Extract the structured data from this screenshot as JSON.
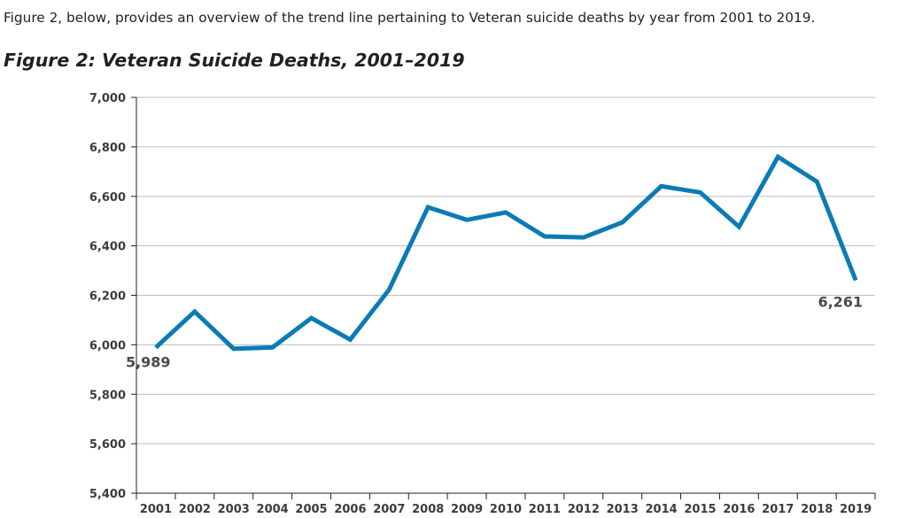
{
  "intro_text": "Figure 2, below, provides an overview of the trend line pertaining to Veteran suicide deaths by year from 2001 to 2019.",
  "figure_title": "Figure 2: Veteran Suicide Deaths, 2001–2019",
  "chart_data": {
    "type": "line",
    "title": "Figure 2: Veteran Suicide Deaths, 2001–2019",
    "xlabel": "",
    "ylabel": "",
    "categories": [
      "2001",
      "2002",
      "2003",
      "2004",
      "2005",
      "2006",
      "2007",
      "2008",
      "2009",
      "2010",
      "2011",
      "2012",
      "2013",
      "2014",
      "2015",
      "2016",
      "2017",
      "2018",
      "2019"
    ],
    "series": [
      {
        "values": [
          5989,
          6134,
          5984,
          5989,
          6108,
          6021,
          6223,
          6556,
          6505,
          6535,
          6438,
          6434,
          6495,
          6641,
          6616,
          6477,
          6760,
          6660,
          6261
        ]
      }
    ],
    "ylim": [
      5400,
      7000
    ],
    "y_ticks": [
      5400,
      5600,
      5800,
      6000,
      6200,
      6400,
      6600,
      6800,
      7000
    ],
    "y_tick_labels": [
      "5,400",
      "5,600",
      "5,800",
      "6,000",
      "6,200",
      "6,400",
      "6,600",
      "6,800",
      "7,000"
    ],
    "data_labels": [
      {
        "category": "2001",
        "text": "5,989"
      },
      {
        "category": "2019",
        "text": "6,261"
      }
    ],
    "grid": true,
    "legend": "none",
    "line_color": "#0b7bb5",
    "grid_color": "#bcbec0",
    "axis_color": "#231f20"
  }
}
